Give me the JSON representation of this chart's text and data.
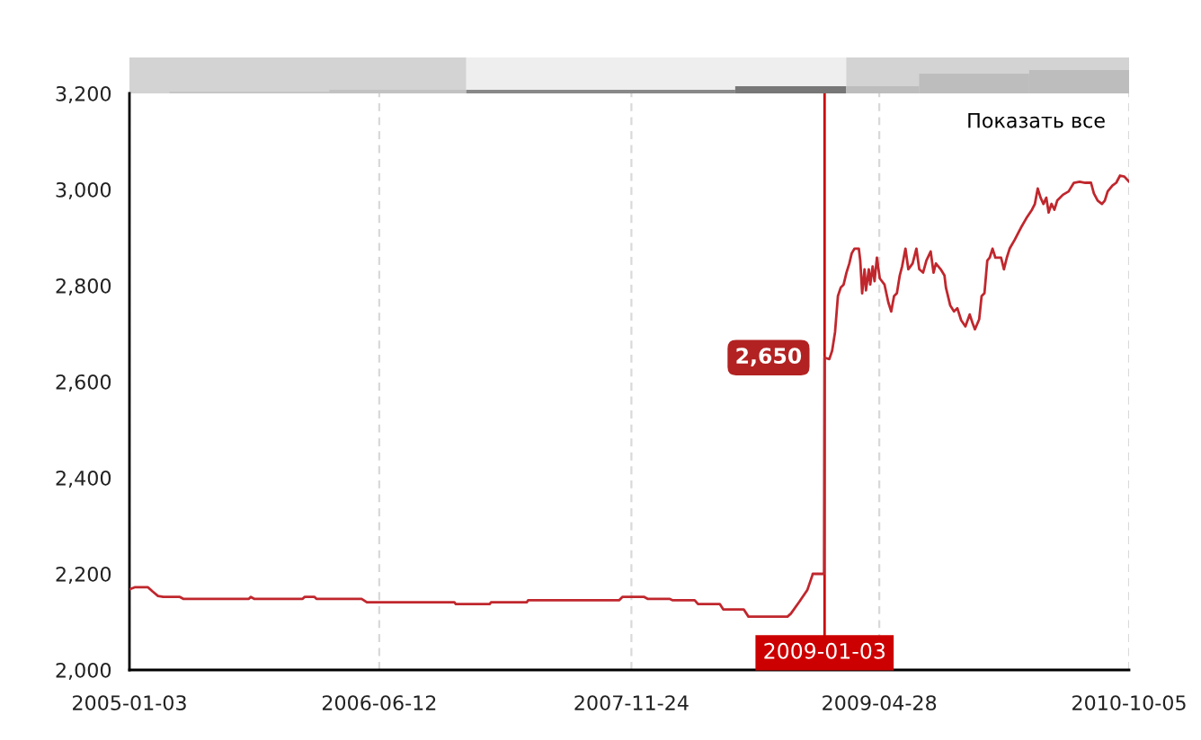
{
  "chart_data": {
    "type": "line",
    "color": "#c0272d",
    "x": [
      "2005-01-03",
      "2005-01-14",
      "2005-02-11",
      "2005-02-21",
      "2005-03-04",
      "2005-03-15",
      "2005-04-19",
      "2005-04-26",
      "2005-09-11",
      "2005-09-15",
      "2005-09-22",
      "2006-01-02",
      "2006-01-06",
      "2006-01-27",
      "2006-01-31",
      "2006-05-06",
      "2006-05-17",
      "2006-11-17",
      "2006-11-20",
      "2007-01-30",
      "2007-02-02",
      "2007-04-18",
      "2007-04-21",
      "2007-10-29",
      "2007-11-05",
      "2007-12-21",
      "2007-12-28",
      "2008-02-12",
      "2008-02-19",
      "2008-04-05",
      "2008-04-12",
      "2008-05-28",
      "2008-06-04",
      "2008-07-17",
      "2008-07-27",
      "2008-10-17",
      "2008-10-24",
      "2008-11-11",
      "2008-11-28",
      "2008-12-08",
      "2008-12-09",
      "2009-01-02",
      "2009-01-03",
      "2009-01-13",
      "2009-01-19",
      "2009-01-25",
      "2009-01-31",
      "2009-02-06",
      "2009-02-12",
      "2009-02-18",
      "2009-02-24",
      "2009-03-01",
      "2009-03-07",
      "2009-03-16",
      "2009-03-19",
      "2009-03-23",
      "2009-03-28",
      "2009-03-31",
      "2009-04-06",
      "2009-04-09",
      "2009-04-14",
      "2009-04-18",
      "2009-04-23",
      "2009-04-29",
      "2009-05-09",
      "2009-05-17",
      "2009-05-23",
      "2009-05-29",
      "2009-06-04",
      "2009-06-10",
      "2009-06-15",
      "2009-06-22",
      "2009-06-28",
      "2009-07-07",
      "2009-07-15",
      "2009-07-21",
      "2009-07-29",
      "2009-08-05",
      "2009-08-14",
      "2009-08-20",
      "2009-08-25",
      "2009-09-04",
      "2009-09-12",
      "2009-09-15",
      "2009-09-24",
      "2009-10-02",
      "2009-10-09",
      "2009-10-17",
      "2009-10-26",
      "2009-11-04",
      "2009-11-10",
      "2009-11-15",
      "2009-11-24",
      "2009-11-29",
      "2009-12-05",
      "2009-12-11",
      "2009-12-16",
      "2009-12-22",
      "2009-12-28",
      "2010-01-09",
      "2010-01-15",
      "2010-01-21",
      "2010-01-27",
      "2010-02-07",
      "2010-02-20",
      "2010-03-03",
      "2010-03-15",
      "2010-03-21",
      "2010-03-27",
      "2010-04-02",
      "2010-04-08",
      "2010-04-14",
      "2010-04-19",
      "2010-04-25",
      "2010-05-01",
      "2010-05-07",
      "2010-05-19",
      "2010-05-31",
      "2010-06-11",
      "2010-06-23",
      "2010-07-05",
      "2010-07-17",
      "2010-07-23",
      "2010-07-31",
      "2010-08-09",
      "2010-08-15",
      "2010-08-21",
      "2010-08-31",
      "2010-09-08",
      "2010-09-16",
      "2010-09-25",
      "2010-10-05"
    ],
    "values": [
      2168,
      2172,
      2172,
      2163,
      2154,
      2152,
      2152,
      2148,
      2148,
      2152,
      2148,
      2148,
      2152,
      2152,
      2148,
      2148,
      2141,
      2141,
      2137,
      2137,
      2141,
      2141,
      2145,
      2145,
      2152,
      2152,
      2148,
      2148,
      2145,
      2145,
      2137,
      2137,
      2126,
      2126,
      2111,
      2111,
      2117,
      2142,
      2167,
      2196,
      2200,
      2200,
      2650,
      2647,
      2665,
      2703,
      2778,
      2796,
      2802,
      2827,
      2846,
      2867,
      2877,
      2877,
      2852,
      2784,
      2834,
      2790,
      2834,
      2802,
      2840,
      2809,
      2858,
      2815,
      2802,
      2765,
      2746,
      2778,
      2784,
      2821,
      2840,
      2877,
      2834,
      2846,
      2877,
      2834,
      2827,
      2852,
      2871,
      2827,
      2846,
      2834,
      2821,
      2796,
      2759,
      2746,
      2753,
      2728,
      2715,
      2740,
      2722,
      2709,
      2730,
      2778,
      2784,
      2852,
      2858,
      2877,
      2858,
      2858,
      2834,
      2858,
      2877,
      2896,
      2921,
      2940,
      2958,
      2970,
      3002,
      2983,
      2970,
      2983,
      2952,
      2970,
      2958,
      2977,
      2989,
      2996,
      3014,
      3016,
      3014,
      3014,
      2992,
      2977,
      2970,
      2977,
      2996,
      3008,
      3014,
      3029,
      3027,
      3016
    ],
    "xlim": [
      "2005-01-03",
      "2010-10-05"
    ],
    "xticks": [
      "2005-01-03",
      "2006-06-12",
      "2007-11-24",
      "2009-04-28",
      "2010-10-05"
    ],
    "ylim": [
      2000,
      3200
    ],
    "yticks": [
      {
        "value": 2000,
        "label": "2,000"
      },
      {
        "value": 2200,
        "label": "2,200"
      },
      {
        "value": 2400,
        "label": "2,400"
      },
      {
        "value": 2600,
        "label": "2,600"
      },
      {
        "value": 2800,
        "label": "2,800"
      },
      {
        "value": 3000,
        "label": "3,000"
      },
      {
        "value": 3200,
        "label": "3,200"
      }
    ],
    "grid": "x",
    "ref_lines": [
      {
        "axis": "x",
        "value": "2009-01-03",
        "label": "2009-01-03",
        "color": "#cc0000"
      }
    ],
    "annotations": [
      {
        "text": "2,650",
        "x": "2009-01-03",
        "y": 2650
      },
      "Показать все"
    ]
  }
}
